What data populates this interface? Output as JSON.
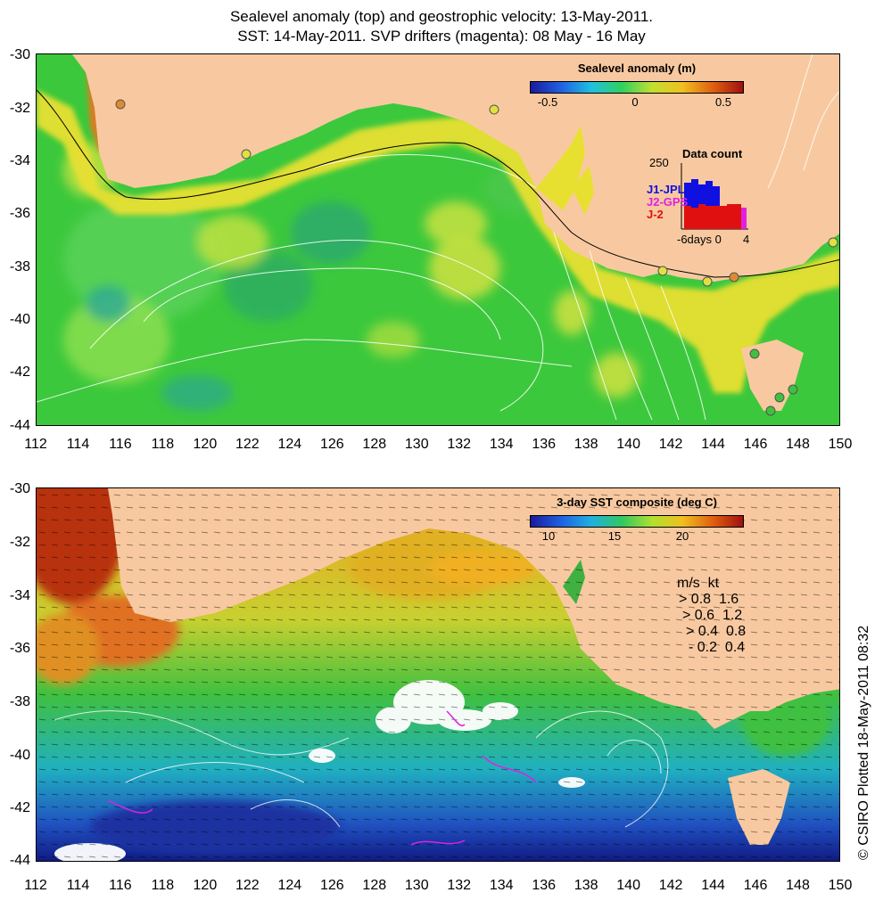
{
  "title_line1": "Sealevel anomaly (top) and geostrophic velocity: 13-May-2011.",
  "title_line2": "SST: 14-May-2011. SVP drifters (magenta): 08 May - 16 May",
  "lat_ticks": [
    "-30",
    "-32",
    "-34",
    "-36",
    "-38",
    "-40",
    "-42",
    "-44"
  ],
  "lon_ticks": [
    "112",
    "114",
    "116",
    "118",
    "120",
    "122",
    "124",
    "126",
    "128",
    "130",
    "132",
    "134",
    "136",
    "138",
    "140",
    "142",
    "144",
    "146",
    "148",
    "150"
  ],
  "top_panel": {
    "colorbar_title": "Sealevel anomaly (m)",
    "colorbar_ticks": [
      "-0.5",
      "0",
      "0.5"
    ],
    "data_count": {
      "title": "Data count",
      "ymax_label": "250",
      "series": [
        {
          "name": "J1-JPL",
          "color": "#1010e0"
        },
        {
          "name": "J2-GPS",
          "color": "#e020e0"
        },
        {
          "name": "J-2",
          "color": "#e01010"
        }
      ],
      "x_label": "-6days 0",
      "x_right_label": "4"
    },
    "colors": {
      "land": "#f8c9a0",
      "ocean_mid": "#3cc83c",
      "coast_high": "#f0e020"
    }
  },
  "bottom_panel": {
    "colorbar_title": "3-day SST composite (deg C)",
    "colorbar_ticks": [
      "10",
      "15",
      "20"
    ],
    "speed_legend": {
      "header": "m/s  kt",
      "rows": [
        {
          "ms": "0.8",
          "kt": "1.6"
        },
        {
          "ms": "0.6",
          "kt": "1.2"
        },
        {
          "ms": "0.4",
          "kt": "0.8"
        },
        {
          "ms": "0.2",
          "kt": "0.4"
        }
      ]
    },
    "colors": {
      "land": "#f8c9a0",
      "warm": "#c02010",
      "cold": "#1030a0"
    }
  },
  "credit": "© CSIRO Plotted 18-May-2011 08:32"
}
